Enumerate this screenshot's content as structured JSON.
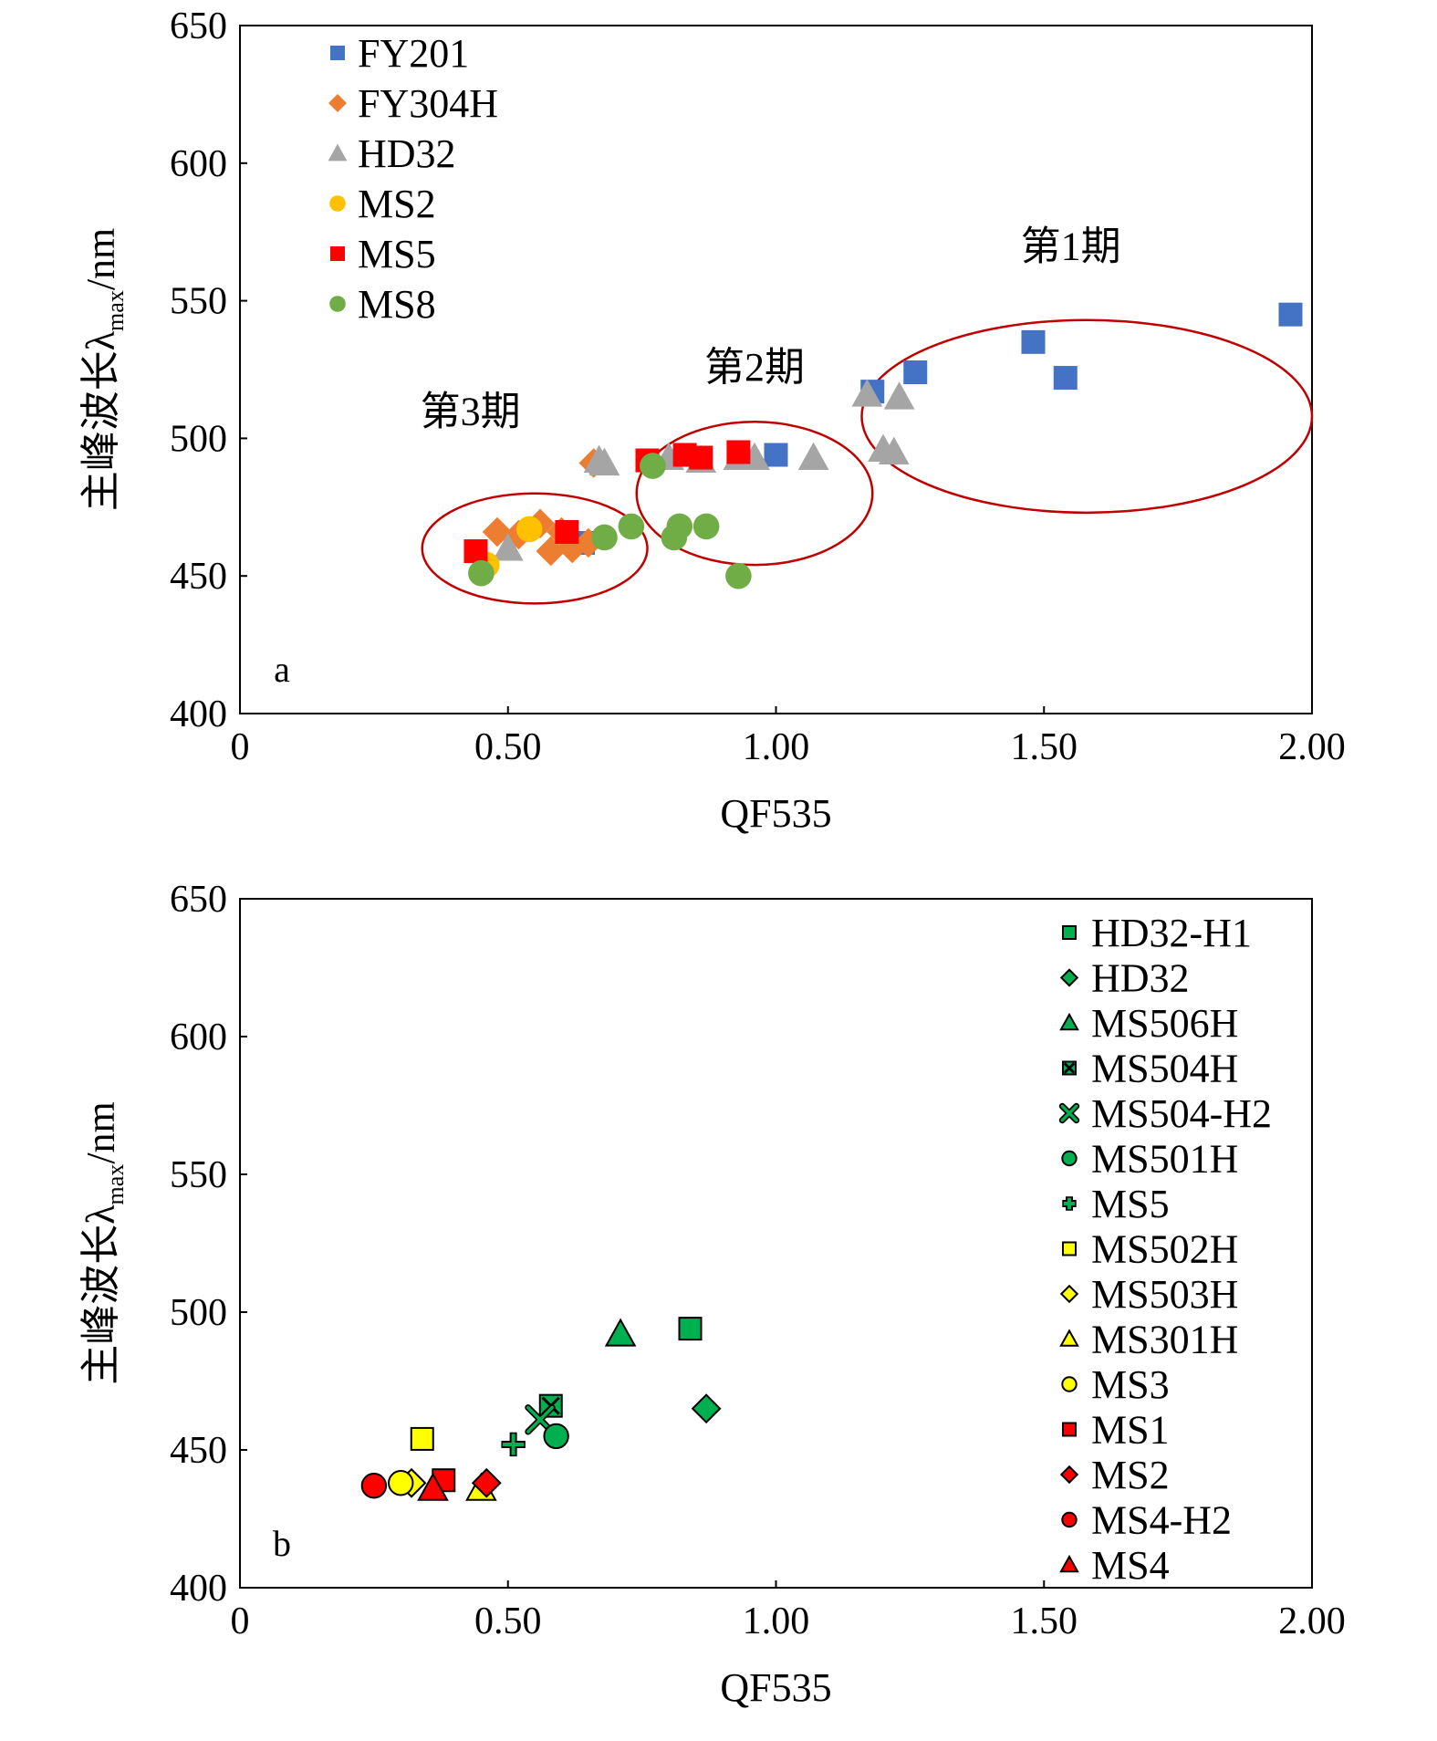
{
  "chart_data": [
    {
      "type": "scatter",
      "panel_label": "a",
      "xlabel": "QF535",
      "ylabel": {
        "main": "主峰波长λ",
        "sub": "max",
        "tail": "/nm"
      },
      "xlim": [
        0,
        2.0
      ],
      "ylim": [
        400,
        650
      ],
      "xticks": [
        0,
        0.5,
        1.0,
        1.5,
        2.0
      ],
      "xtick_labels": [
        "0",
        "0.50",
        "1.00",
        "1.50",
        "2.00"
      ],
      "yticks": [
        400,
        450,
        500,
        550,
        600,
        650
      ],
      "ytick_labels": [
        "400",
        "450",
        "500",
        "550",
        "600",
        "650"
      ],
      "grid": false,
      "legend_position": "top-left",
      "series": [
        {
          "name": "FY201",
          "marker": "square",
          "color": "#4472C4",
          "edge": "none",
          "points": [
            [
              0.64,
              462
            ],
            [
              1.0,
              494
            ],
            [
              1.18,
              517
            ],
            [
              1.26,
              524
            ],
            [
              1.48,
              535
            ],
            [
              1.54,
              522
            ],
            [
              1.96,
              545
            ]
          ]
        },
        {
          "name": "FY304H",
          "marker": "diamond",
          "color": "#ED7D31",
          "edge": "none",
          "points": [
            [
              0.48,
              466
            ],
            [
              0.52,
              465
            ],
            [
              0.56,
              469
            ],
            [
              0.58,
              459
            ],
            [
              0.6,
              466
            ],
            [
              0.62,
              460
            ],
            [
              0.65,
              462
            ],
            [
              0.66,
              491
            ]
          ]
        },
        {
          "name": "HD32",
          "marker": "triangle",
          "color": "#A5A5A5",
          "edge": "none",
          "points": [
            [
              0.5,
              460
            ],
            [
              0.67,
              492
            ],
            [
              0.68,
              491
            ],
            [
              0.8,
              493
            ],
            [
              0.86,
              492
            ],
            [
              0.93,
              493
            ],
            [
              0.96,
              493
            ],
            [
              1.07,
              493
            ],
            [
              1.17,
              516
            ],
            [
              1.2,
              496
            ],
            [
              1.22,
              495
            ],
            [
              1.23,
              515
            ]
          ]
        },
        {
          "name": "MS2",
          "marker": "circle",
          "color": "#FFC000",
          "edge": "none",
          "points": [
            [
              0.46,
              454
            ],
            [
              0.54,
              467
            ]
          ]
        },
        {
          "name": "MS5",
          "marker": "square",
          "color": "#FF0000",
          "edge": "none",
          "points": [
            [
              0.44,
              459
            ],
            [
              0.61,
              466
            ],
            [
              0.76,
              492
            ],
            [
              0.83,
              494
            ],
            [
              0.86,
              493
            ],
            [
              0.93,
              495
            ]
          ]
        },
        {
          "name": "MS8",
          "marker": "circle",
          "color": "#70AD47",
          "edge": "none",
          "points": [
            [
              0.45,
              451
            ],
            [
              0.68,
              464
            ],
            [
              0.73,
              468
            ],
            [
              0.77,
              490
            ],
            [
              0.81,
              464
            ],
            [
              0.82,
              468
            ],
            [
              0.87,
              468
            ],
            [
              0.93,
              450
            ]
          ]
        }
      ],
      "annotations": [
        {
          "text": "第1期",
          "x": 1.55,
          "y": 565,
          "ellipse": {
            "cx": 1.58,
            "cy": 508,
            "rx": 0.42,
            "ry": 35
          }
        },
        {
          "text": "第2期",
          "x": 0.96,
          "y": 521,
          "ellipse": {
            "cx": 0.96,
            "cy": 480,
            "rx": 0.22,
            "ry": 26
          }
        },
        {
          "text": "第3期",
          "x": 0.43,
          "y": 505,
          "ellipse": {
            "cx": 0.55,
            "cy": 460,
            "rx": 0.21,
            "ry": 20
          }
        }
      ]
    },
    {
      "type": "scatter",
      "panel_label": "b",
      "xlabel": "QF535",
      "ylabel": {
        "main": "主峰波长λ",
        "sub": "max",
        "tail": "/nm"
      },
      "xlim": [
        0,
        2.0
      ],
      "ylim": [
        400,
        650
      ],
      "xticks": [
        0,
        0.5,
        1.0,
        1.5,
        2.0
      ],
      "xtick_labels": [
        "0",
        "0.50",
        "1.00",
        "1.50",
        "2.00"
      ],
      "yticks": [
        400,
        450,
        500,
        550,
        600,
        650
      ],
      "ytick_labels": [
        "400",
        "450",
        "500",
        "550",
        "600",
        "650"
      ],
      "grid": false,
      "legend_position": "right",
      "series": [
        {
          "name": "HD32-H1",
          "marker": "square",
          "color": "#00B050",
          "edge": "#000000",
          "points": [
            [
              0.84,
              494
            ]
          ]
        },
        {
          "name": "HD32",
          "marker": "diamond",
          "color": "#00B050",
          "edge": "#000000",
          "points": [
            [
              0.87,
              465
            ]
          ]
        },
        {
          "name": "MS506H",
          "marker": "triangle",
          "color": "#00B050",
          "edge": "#000000",
          "points": [
            [
              0.71,
              492
            ]
          ]
        },
        {
          "name": "MS504H",
          "marker": "squarex",
          "color": "#00B050",
          "edge": "#000000",
          "points": [
            [
              0.58,
              466
            ]
          ]
        },
        {
          "name": "MS504-H2",
          "marker": "xstar",
          "color": "#00B050",
          "edge": "#000000",
          "points": [
            [
              0.56,
              461
            ]
          ]
        },
        {
          "name": "MS501H",
          "marker": "circle",
          "color": "#00B050",
          "edge": "#000000",
          "points": [
            [
              0.59,
              455
            ]
          ]
        },
        {
          "name": "MS5",
          "marker": "plus",
          "color": "#00B050",
          "edge": "#000000",
          "points": [
            [
              0.51,
              452
            ]
          ]
        },
        {
          "name": "MS502H",
          "marker": "square",
          "color": "#FFFF00",
          "edge": "#000000",
          "points": [
            [
              0.34,
              454
            ]
          ]
        },
        {
          "name": "MS503H",
          "marker": "diamond",
          "color": "#FFFF00",
          "edge": "#000000",
          "points": [
            [
              0.32,
              438
            ]
          ]
        },
        {
          "name": "MS301H",
          "marker": "triangle",
          "color": "#FFFF00",
          "edge": "#000000",
          "points": [
            [
              0.45,
              436
            ]
          ]
        },
        {
          "name": "MS3",
          "marker": "circle",
          "color": "#FFFF00",
          "edge": "#000000",
          "points": [
            [
              0.3,
              438
            ]
          ]
        },
        {
          "name": "MS1",
          "marker": "square",
          "color": "#FF0000",
          "edge": "#000000",
          "points": [
            [
              0.38,
              439
            ]
          ]
        },
        {
          "name": "MS2",
          "marker": "diamond",
          "color": "#FF0000",
          "edge": "#000000",
          "points": [
            [
              0.46,
              438
            ]
          ]
        },
        {
          "name": "MS4-H2",
          "marker": "circle",
          "color": "#FF0000",
          "edge": "#000000",
          "points": [
            [
              0.25,
              437
            ]
          ]
        },
        {
          "name": "MS4",
          "marker": "triangle",
          "color": "#FF0000",
          "edge": "#000000",
          "points": [
            [
              0.36,
              436
            ]
          ]
        }
      ]
    }
  ]
}
